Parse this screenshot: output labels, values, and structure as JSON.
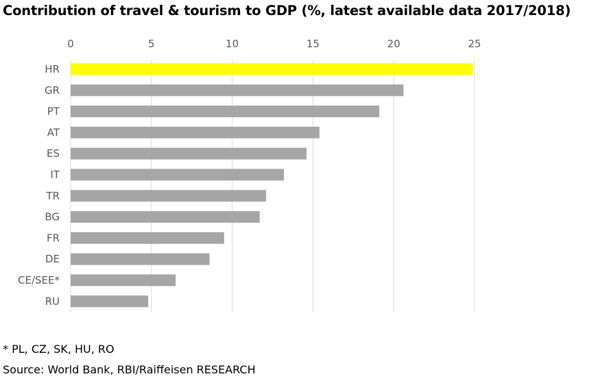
{
  "title": "Contribution of travel & tourism to GDP (%, latest available data 2017/2018)",
  "footnote": "* PL, CZ, SK, HU, RO",
  "source": "Source: World Bank, RBI/Raiffeisen RESEARCH",
  "colors": {
    "highlight": "#FFFF00",
    "bar": "#A6A6A6",
    "grid": "#D9D9D9",
    "text": "#595959"
  },
  "chart_data": {
    "type": "bar",
    "orientation": "horizontal",
    "categories": [
      "HR",
      "GR",
      "PT",
      "AT",
      "ES",
      "IT",
      "TR",
      "BG",
      "FR",
      "DE",
      "CE/SEE*",
      "RU"
    ],
    "values": [
      24.9,
      20.6,
      19.1,
      15.4,
      14.6,
      13.2,
      12.1,
      11.7,
      9.5,
      8.6,
      6.5,
      4.8
    ],
    "highlight_index": 0,
    "xlim": [
      0,
      25
    ],
    "xticks": [
      0,
      5,
      10,
      15,
      20,
      25
    ],
    "x_axis_position": "top",
    "grid": true
  }
}
